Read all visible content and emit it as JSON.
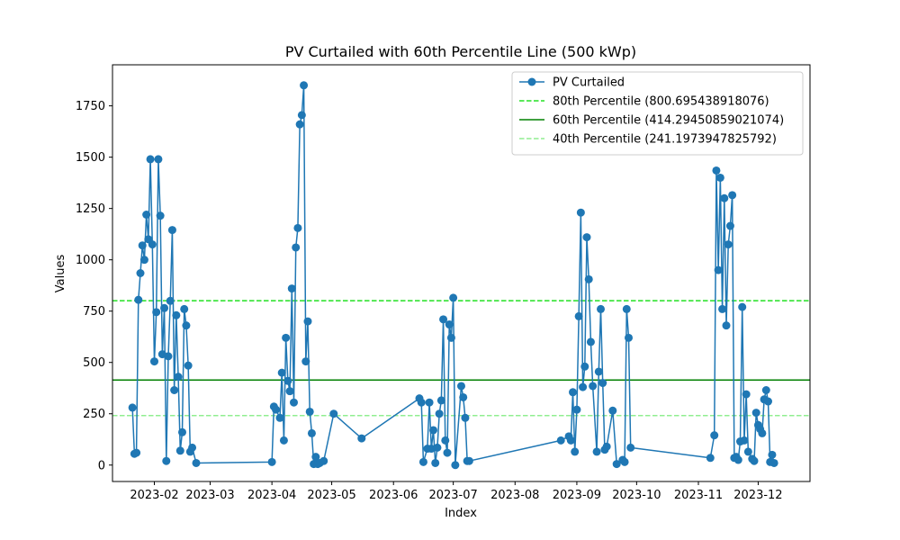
{
  "chart_data": {
    "type": "line",
    "title": "PV Curtailed with 60th Percentile Line (500 kWp)",
    "xlabel": "Index",
    "ylabel": "Values",
    "xlim": [
      "2023-01-11",
      "2023-12-27"
    ],
    "ylim": [
      -80,
      1950
    ],
    "x_ticks": [
      "2023-02",
      "2023-03",
      "2023-04",
      "2023-05",
      "2023-06",
      "2023-07",
      "2023-08",
      "2023-09",
      "2023-10",
      "2023-11",
      "2023-12"
    ],
    "y_ticks": [
      0,
      250,
      500,
      750,
      1000,
      1250,
      1500,
      1750
    ],
    "grid": false,
    "legend_position": "top-right",
    "series": [
      {
        "name": "PV Curtailed",
        "color": "#1f77b4",
        "marker": "circle",
        "points": [
          [
            "2023-01-21",
            280
          ],
          [
            "2023-01-22",
            55
          ],
          [
            "2023-01-23",
            60
          ],
          [
            "2023-01-24",
            805
          ],
          [
            "2023-01-25",
            935
          ],
          [
            "2023-01-26",
            1070
          ],
          [
            "2023-01-27",
            1000
          ],
          [
            "2023-01-28",
            1220
          ],
          [
            "2023-01-29",
            1100
          ],
          [
            "2023-01-30",
            1490
          ],
          [
            "2023-01-31",
            1075
          ],
          [
            "2023-02-01",
            505
          ],
          [
            "2023-02-02",
            745
          ],
          [
            "2023-02-03",
            1490
          ],
          [
            "2023-02-04",
            1215
          ],
          [
            "2023-02-05",
            540
          ],
          [
            "2023-02-06",
            765
          ],
          [
            "2023-02-07",
            20
          ],
          [
            "2023-02-08",
            530
          ],
          [
            "2023-02-09",
            800
          ],
          [
            "2023-02-10",
            1145
          ],
          [
            "2023-02-11",
            365
          ],
          [
            "2023-02-12",
            730
          ],
          [
            "2023-02-13",
            430
          ],
          [
            "2023-02-14",
            70
          ],
          [
            "2023-02-15",
            160
          ],
          [
            "2023-02-16",
            760
          ],
          [
            "2023-02-17",
            680
          ],
          [
            "2023-02-18",
            485
          ],
          [
            "2023-02-19",
            65
          ],
          [
            "2023-02-20",
            85
          ],
          [
            "2023-02-22",
            10
          ],
          [
            "2023-04-01",
            15
          ],
          [
            "2023-04-02",
            285
          ],
          [
            "2023-04-03",
            270
          ],
          [
            "2023-04-05",
            230
          ],
          [
            "2023-04-06",
            450
          ],
          [
            "2023-04-07",
            120
          ],
          [
            "2023-04-08",
            620
          ],
          [
            "2023-04-09",
            410
          ],
          [
            "2023-04-10",
            360
          ],
          [
            "2023-04-11",
            860
          ],
          [
            "2023-04-12",
            305
          ],
          [
            "2023-04-13",
            1060
          ],
          [
            "2023-04-14",
            1155
          ],
          [
            "2023-04-15",
            1660
          ],
          [
            "2023-04-16",
            1705
          ],
          [
            "2023-04-17",
            1850
          ],
          [
            "2023-04-18",
            505
          ],
          [
            "2023-04-19",
            700
          ],
          [
            "2023-04-20",
            260
          ],
          [
            "2023-04-21",
            155
          ],
          [
            "2023-04-22",
            5
          ],
          [
            "2023-04-23",
            40
          ],
          [
            "2023-04-24",
            5
          ],
          [
            "2023-04-25",
            10
          ],
          [
            "2023-04-27",
            20
          ],
          [
            "2023-05-02",
            250
          ],
          [
            "2023-05-16",
            130
          ],
          [
            "2023-06-14",
            325
          ],
          [
            "2023-06-15",
            305
          ],
          [
            "2023-06-16",
            15
          ],
          [
            "2023-06-18",
            80
          ],
          [
            "2023-06-19",
            305
          ],
          [
            "2023-06-20",
            80
          ],
          [
            "2023-06-21",
            170
          ],
          [
            "2023-06-22",
            10
          ],
          [
            "2023-06-23",
            85
          ],
          [
            "2023-06-24",
            250
          ],
          [
            "2023-06-25",
            315
          ],
          [
            "2023-06-26",
            710
          ],
          [
            "2023-06-27",
            120
          ],
          [
            "2023-06-28",
            60
          ],
          [
            "2023-06-29",
            685
          ],
          [
            "2023-06-30",
            620
          ],
          [
            "2023-07-01",
            815
          ],
          [
            "2023-07-02",
            0
          ],
          [
            "2023-07-05",
            385
          ],
          [
            "2023-07-06",
            330
          ],
          [
            "2023-07-07",
            230
          ],
          [
            "2023-07-08",
            20
          ],
          [
            "2023-07-09",
            20
          ],
          [
            "2023-08-24",
            120
          ],
          [
            "2023-08-28",
            140
          ],
          [
            "2023-08-29",
            120
          ],
          [
            "2023-08-30",
            355
          ],
          [
            "2023-08-31",
            65
          ],
          [
            "2023-09-01",
            270
          ],
          [
            "2023-09-02",
            725
          ],
          [
            "2023-09-03",
            1230
          ],
          [
            "2023-09-04",
            380
          ],
          [
            "2023-09-05",
            480
          ],
          [
            "2023-09-06",
            1110
          ],
          [
            "2023-09-07",
            905
          ],
          [
            "2023-09-08",
            600
          ],
          [
            "2023-09-09",
            385
          ],
          [
            "2023-09-11",
            65
          ],
          [
            "2023-09-12",
            455
          ],
          [
            "2023-09-13",
            760
          ],
          [
            "2023-09-14",
            400
          ],
          [
            "2023-09-15",
            75
          ],
          [
            "2023-09-16",
            90
          ],
          [
            "2023-09-19",
            265
          ],
          [
            "2023-09-21",
            5
          ],
          [
            "2023-09-24",
            25
          ],
          [
            "2023-09-25",
            15
          ],
          [
            "2023-09-26",
            760
          ],
          [
            "2023-09-27",
            620
          ],
          [
            "2023-09-28",
            85
          ],
          [
            "2023-11-07",
            35
          ],
          [
            "2023-11-09",
            145
          ],
          [
            "2023-11-10",
            1435
          ],
          [
            "2023-11-11",
            950
          ],
          [
            "2023-11-12",
            1400
          ],
          [
            "2023-11-13",
            760
          ],
          [
            "2023-11-14",
            1300
          ],
          [
            "2023-11-15",
            680
          ],
          [
            "2023-11-16",
            1075
          ],
          [
            "2023-11-17",
            1165
          ],
          [
            "2023-11-18",
            1315
          ],
          [
            "2023-11-19",
            35
          ],
          [
            "2023-11-20",
            40
          ],
          [
            "2023-11-21",
            25
          ],
          [
            "2023-11-22",
            115
          ],
          [
            "2023-11-23",
            770
          ],
          [
            "2023-11-24",
            120
          ],
          [
            "2023-11-25",
            345
          ],
          [
            "2023-11-26",
            65
          ],
          [
            "2023-11-28",
            30
          ],
          [
            "2023-11-29",
            20
          ],
          [
            "2023-11-30",
            255
          ],
          [
            "2023-12-01",
            195
          ],
          [
            "2023-12-02",
            175
          ],
          [
            "2023-12-03",
            155
          ],
          [
            "2023-12-04",
            320
          ],
          [
            "2023-12-05",
            365
          ],
          [
            "2023-12-06",
            310
          ],
          [
            "2023-12-07",
            15
          ],
          [
            "2023-12-08",
            50
          ],
          [
            "2023-12-09",
            10
          ]
        ]
      }
    ],
    "reference_lines": [
      {
        "name": "80th Percentile (800.695438918076)",
        "value": 800.695438918076,
        "color": "#22e022",
        "style": "dashed"
      },
      {
        "name": "60th Percentile (414.29450859021074)",
        "value": 414.29450859021074,
        "color": "#008000",
        "style": "solid"
      },
      {
        "name": "40th Percentile (241.1973947825792)",
        "value": 241.1973947825792,
        "color": "#90ee90",
        "style": "dashed"
      }
    ]
  }
}
